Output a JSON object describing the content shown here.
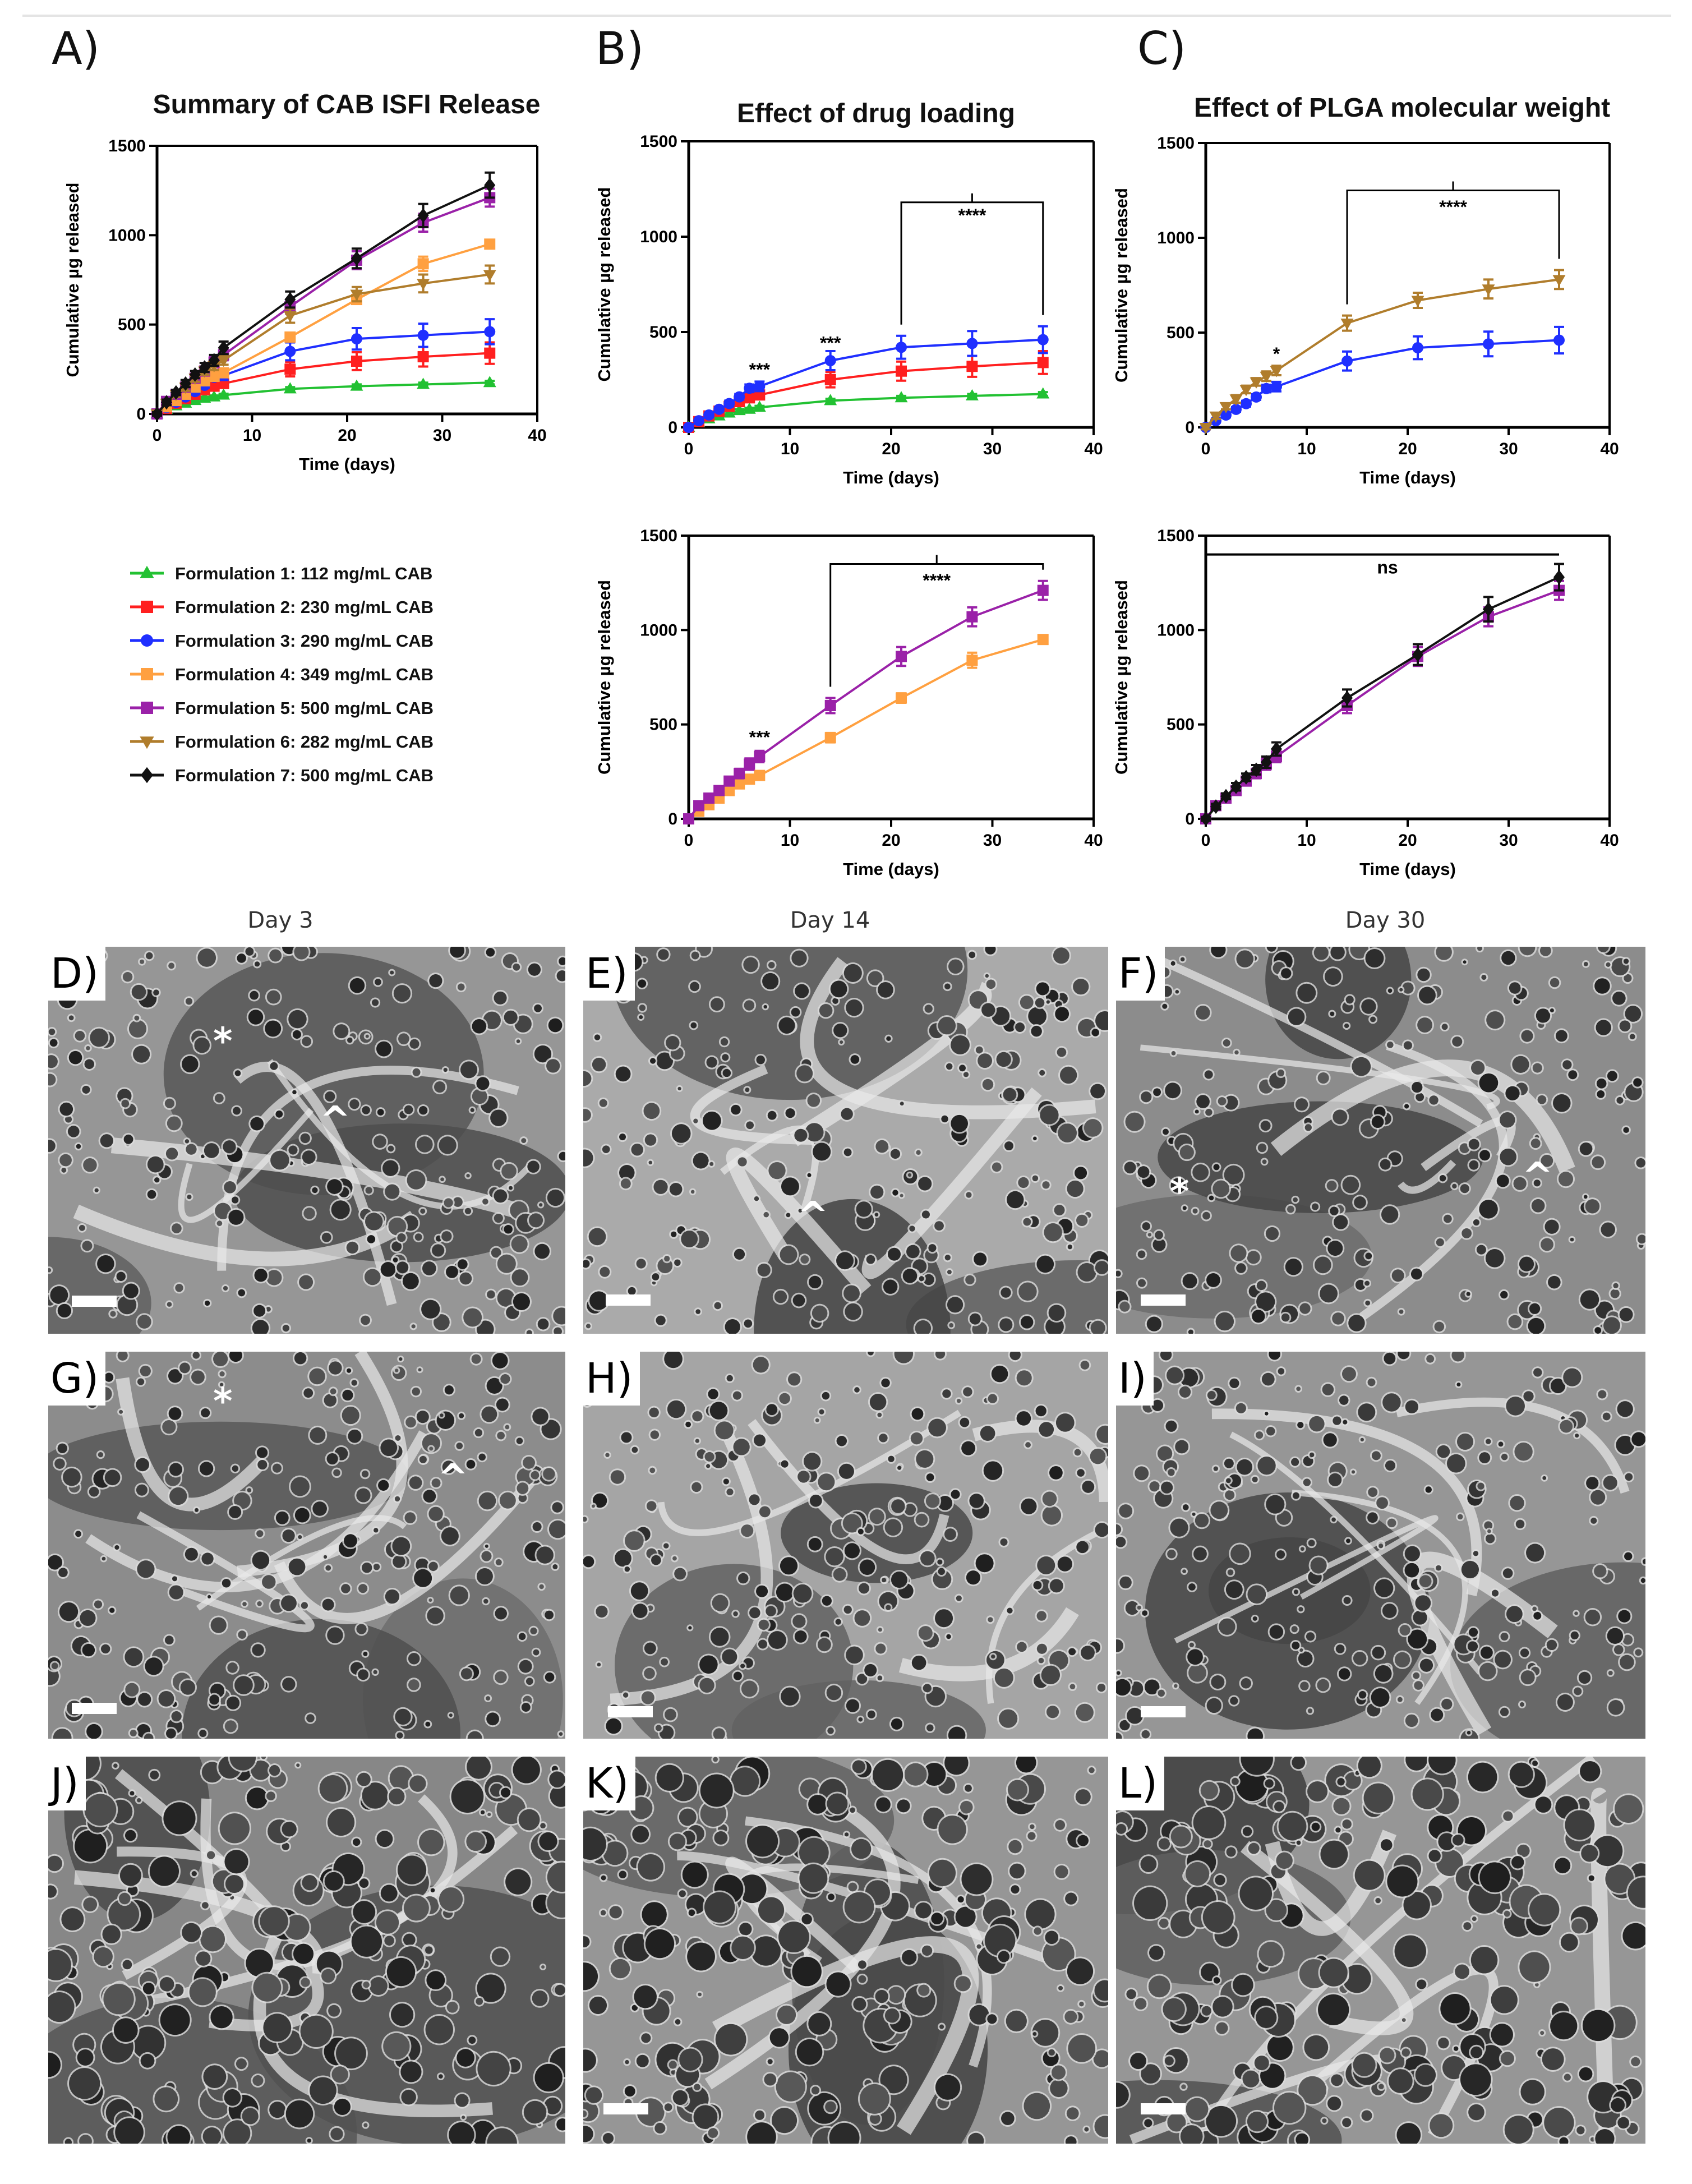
{
  "panel_letters": [
    "A)",
    "B)",
    "C)"
  ],
  "legend": [
    {
      "label": "Formulation 1: 112 mg/mL CAB",
      "color": "#22c132",
      "marker": "triangle"
    },
    {
      "label": "Formulation 2: 230 mg/mL CAB",
      "color": "#ff1f1f",
      "marker": "square"
    },
    {
      "label": "Formulation 3: 290 mg/mL CAB",
      "color": "#1f2fff",
      "marker": "circle"
    },
    {
      "label": "Formulation 4: 349 mg/mL CAB",
      "color": "#ffa040",
      "marker": "square"
    },
    {
      "label": "Formulation 5: 500 mg/mL CAB",
      "color": "#9a21a8",
      "marker": "square"
    },
    {
      "label": "Formulation 6: 282 mg/mL CAB",
      "color": "#b07d2c",
      "marker": "triangle-down"
    },
    {
      "label": "Formulation 7: 500 mg/mL CAB",
      "color": "#111111",
      "marker": "diamond"
    }
  ],
  "chart_data": [
    {
      "id": "A",
      "type": "line",
      "title": "Summary of CAB ISFI Release",
      "xlabel": "Time (days)",
      "ylabel": "Cumulative µg released",
      "xlim": [
        0,
        40
      ],
      "ylim": [
        0,
        1500
      ],
      "xticks": [
        0,
        10,
        20,
        30,
        40
      ],
      "yticks": [
        0,
        500,
        1000,
        1500
      ],
      "series": [
        {
          "formulation": 1,
          "x": [
            0,
            1,
            2,
            3,
            4,
            5,
            6,
            7,
            14,
            21,
            28,
            35
          ],
          "y": [
            0,
            25,
            45,
            60,
            75,
            88,
            95,
            105,
            140,
            155,
            165,
            175
          ],
          "err": [
            8,
            8,
            8,
            8,
            8,
            8,
            8,
            8,
            10,
            10,
            10,
            10
          ]
        },
        {
          "formulation": 2,
          "x": [
            0,
            1,
            2,
            3,
            4,
            5,
            6,
            7,
            14,
            21,
            28,
            35
          ],
          "y": [
            0,
            30,
            60,
            85,
            110,
            135,
            155,
            170,
            250,
            295,
            320,
            340
          ],
          "err": [
            10,
            10,
            10,
            12,
            12,
            15,
            15,
            20,
            40,
            50,
            55,
            60
          ]
        },
        {
          "formulation": 3,
          "x": [
            0,
            1,
            2,
            3,
            4,
            5,
            6,
            7,
            14,
            21,
            28,
            35
          ],
          "y": [
            0,
            35,
            65,
            95,
            125,
            160,
            205,
            215,
            350,
            420,
            440,
            460
          ],
          "err": [
            10,
            10,
            12,
            12,
            15,
            15,
            20,
            25,
            50,
            60,
            65,
            70
          ]
        },
        {
          "formulation": 4,
          "x": [
            0,
            1,
            2,
            3,
            4,
            5,
            6,
            7,
            14,
            21,
            28,
            35
          ],
          "y": [
            0,
            40,
            75,
            110,
            150,
            185,
            210,
            230,
            430,
            640,
            840,
            950
          ],
          "err": [
            10,
            10,
            12,
            12,
            15,
            15,
            20,
            20,
            25,
            25,
            40,
            20
          ]
        },
        {
          "formulation": 5,
          "x": [
            0,
            1,
            2,
            3,
            4,
            5,
            6,
            7,
            14,
            21,
            28,
            35
          ],
          "y": [
            0,
            70,
            110,
            150,
            200,
            240,
            290,
            330,
            600,
            860,
            1070,
            1210
          ],
          "err": [
            10,
            15,
            15,
            20,
            20,
            25,
            30,
            30,
            40,
            50,
            50,
            50
          ]
        },
        {
          "formulation": 6,
          "x": [
            0,
            1,
            2,
            3,
            4,
            5,
            6,
            7,
            14,
            21,
            28,
            35
          ],
          "y": [
            0,
            60,
            110,
            150,
            200,
            240,
            270,
            300,
            550,
            670,
            730,
            780
          ],
          "err": [
            10,
            15,
            15,
            20,
            20,
            20,
            25,
            25,
            40,
            40,
            50,
            50
          ]
        },
        {
          "formulation": 7,
          "x": [
            0,
            1,
            2,
            3,
            4,
            5,
            6,
            7,
            14,
            21,
            28,
            35
          ],
          "y": [
            0,
            65,
            120,
            170,
            220,
            260,
            300,
            370,
            640,
            870,
            1110,
            1280
          ],
          "err": [
            10,
            15,
            15,
            20,
            20,
            25,
            30,
            35,
            45,
            55,
            65,
            70
          ]
        }
      ],
      "annotations": []
    },
    {
      "id": "B1",
      "type": "line",
      "title": "Effect of drug loading",
      "xlabel": "Time (days)",
      "ylabel": "Cumulative µg released",
      "xlim": [
        0,
        40
      ],
      "ylim": [
        0,
        1500
      ],
      "xticks": [
        0,
        10,
        20,
        30,
        40
      ],
      "yticks": [
        0,
        500,
        1000,
        1500
      ],
      "series": [
        {
          "formulation": 1,
          "x": [
            0,
            1,
            2,
            3,
            4,
            5,
            6,
            7,
            14,
            21,
            28,
            35
          ],
          "y": [
            0,
            25,
            45,
            60,
            75,
            88,
            95,
            105,
            140,
            155,
            165,
            175
          ],
          "err": [
            8,
            8,
            8,
            8,
            8,
            8,
            8,
            8,
            10,
            10,
            10,
            10
          ]
        },
        {
          "formulation": 2,
          "x": [
            0,
            1,
            2,
            3,
            4,
            5,
            6,
            7,
            14,
            21,
            28,
            35
          ],
          "y": [
            0,
            30,
            60,
            85,
            110,
            135,
            155,
            170,
            250,
            295,
            320,
            340
          ],
          "err": [
            10,
            10,
            10,
            12,
            12,
            15,
            15,
            20,
            40,
            50,
            55,
            60
          ]
        },
        {
          "formulation": 3,
          "x": [
            0,
            1,
            2,
            3,
            4,
            5,
            6,
            7,
            14,
            21,
            28,
            35
          ],
          "y": [
            0,
            35,
            65,
            95,
            125,
            160,
            205,
            215,
            350,
            420,
            440,
            460
          ],
          "err": [
            10,
            10,
            12,
            12,
            15,
            15,
            20,
            25,
            50,
            60,
            65,
            70
          ]
        }
      ],
      "annotations": [
        {
          "text": "***",
          "x": 7,
          "y": 270
        },
        {
          "text": "***",
          "x": 14,
          "y": 410
        },
        {
          "text": "****",
          "x": 28,
          "y": 1080,
          "bracket": [
            21,
            35,
            1180
          ]
        }
      ]
    },
    {
      "id": "C1",
      "type": "line",
      "title": "Effect of PLGA molecular weight",
      "xlabel": "Time (days)",
      "ylabel": "Cumulative µg released",
      "xlim": [
        0,
        40
      ],
      "ylim": [
        0,
        1500
      ],
      "xticks": [
        0,
        10,
        20,
        30,
        40
      ],
      "yticks": [
        0,
        500,
        1000,
        1500
      ],
      "series": [
        {
          "formulation": 3,
          "x": [
            0,
            1,
            2,
            3,
            4,
            5,
            6,
            7,
            14,
            21,
            28,
            35
          ],
          "y": [
            0,
            35,
            65,
            95,
            125,
            160,
            205,
            215,
            350,
            420,
            440,
            460
          ],
          "err": [
            10,
            10,
            12,
            12,
            15,
            15,
            20,
            25,
            50,
            60,
            65,
            70
          ]
        },
        {
          "formulation": 6,
          "x": [
            0,
            1,
            2,
            3,
            4,
            5,
            6,
            7,
            14,
            21,
            28,
            35
          ],
          "y": [
            0,
            60,
            110,
            150,
            200,
            240,
            270,
            300,
            550,
            670,
            730,
            780
          ],
          "err": [
            10,
            15,
            15,
            20,
            20,
            20,
            25,
            25,
            40,
            40,
            50,
            50
          ]
        }
      ],
      "annotations": [
        {
          "text": "*",
          "x": 7,
          "y": 355
        },
        {
          "text": "****",
          "x": 24.5,
          "y": 1130,
          "bracket": [
            14,
            35,
            1250
          ]
        }
      ]
    },
    {
      "id": "B2",
      "type": "line",
      "title": "",
      "xlabel": "Time (days)",
      "ylabel": "Cumulative µg released",
      "xlim": [
        0,
        40
      ],
      "ylim": [
        0,
        1500
      ],
      "xticks": [
        0,
        10,
        20,
        30,
        40
      ],
      "yticks": [
        0,
        500,
        1000,
        1500
      ],
      "series": [
        {
          "formulation": 4,
          "x": [
            0,
            1,
            2,
            3,
            4,
            5,
            6,
            7,
            14,
            21,
            28,
            35
          ],
          "y": [
            0,
            40,
            75,
            110,
            150,
            185,
            210,
            230,
            430,
            640,
            840,
            950
          ],
          "err": [
            10,
            10,
            12,
            12,
            15,
            15,
            20,
            20,
            25,
            25,
            40,
            20
          ]
        },
        {
          "formulation": 5,
          "x": [
            0,
            1,
            2,
            3,
            4,
            5,
            6,
            7,
            14,
            21,
            28,
            35
          ],
          "y": [
            0,
            70,
            110,
            150,
            200,
            240,
            290,
            330,
            600,
            860,
            1070,
            1210
          ],
          "err": [
            10,
            15,
            15,
            20,
            20,
            25,
            30,
            30,
            40,
            50,
            50,
            50
          ]
        }
      ],
      "annotations": [
        {
          "text": "***",
          "x": 7,
          "y": 400
        },
        {
          "text": "****",
          "x": 24.5,
          "y": 1230,
          "bracket": [
            14,
            35,
            1350
          ]
        }
      ]
    },
    {
      "id": "C2",
      "type": "line",
      "title": "",
      "xlabel": "Time (days)",
      "ylabel": "Cumulative µg released",
      "xlim": [
        0,
        40
      ],
      "ylim": [
        0,
        1500
      ],
      "xticks": [
        0,
        10,
        20,
        30,
        40
      ],
      "yticks": [
        0,
        500,
        1000,
        1500
      ],
      "series": [
        {
          "formulation": 5,
          "x": [
            0,
            1,
            2,
            3,
            4,
            5,
            6,
            7,
            14,
            21,
            28,
            35
          ],
          "y": [
            0,
            70,
            110,
            150,
            200,
            240,
            290,
            330,
            600,
            860,
            1070,
            1210
          ],
          "err": [
            10,
            15,
            15,
            20,
            20,
            25,
            30,
            30,
            40,
            50,
            50,
            50
          ]
        },
        {
          "formulation": 7,
          "x": [
            0,
            1,
            2,
            3,
            4,
            5,
            6,
            7,
            14,
            21,
            28,
            35
          ],
          "y": [
            0,
            65,
            120,
            170,
            220,
            260,
            300,
            370,
            640,
            870,
            1110,
            1280
          ],
          "err": [
            10,
            15,
            15,
            20,
            20,
            25,
            30,
            35,
            45,
            55,
            65,
            70
          ]
        }
      ],
      "annotations": [
        {
          "text": "ns",
          "x": 18,
          "y": 1300,
          "line": [
            0,
            35,
            1400
          ]
        }
      ]
    }
  ],
  "sem": {
    "column_headers": [
      "Day 3",
      "Day 14",
      "Day 30"
    ],
    "panels": [
      {
        "id": "D",
        "label": "D)",
        "marks": [
          "*",
          "^"
        ]
      },
      {
        "id": "E",
        "label": "E)",
        "marks": [
          "^"
        ]
      },
      {
        "id": "F",
        "label": "F)",
        "marks": [
          "*",
          "^"
        ]
      },
      {
        "id": "G",
        "label": "G)",
        "marks": [
          "*",
          "^"
        ]
      },
      {
        "id": "H",
        "label": "H)",
        "marks": []
      },
      {
        "id": "I",
        "label": "I)",
        "marks": []
      },
      {
        "id": "J",
        "label": "J)",
        "marks": []
      },
      {
        "id": "K",
        "label": "K)",
        "marks": []
      },
      {
        "id": "L",
        "label": "L)",
        "marks": []
      }
    ]
  }
}
